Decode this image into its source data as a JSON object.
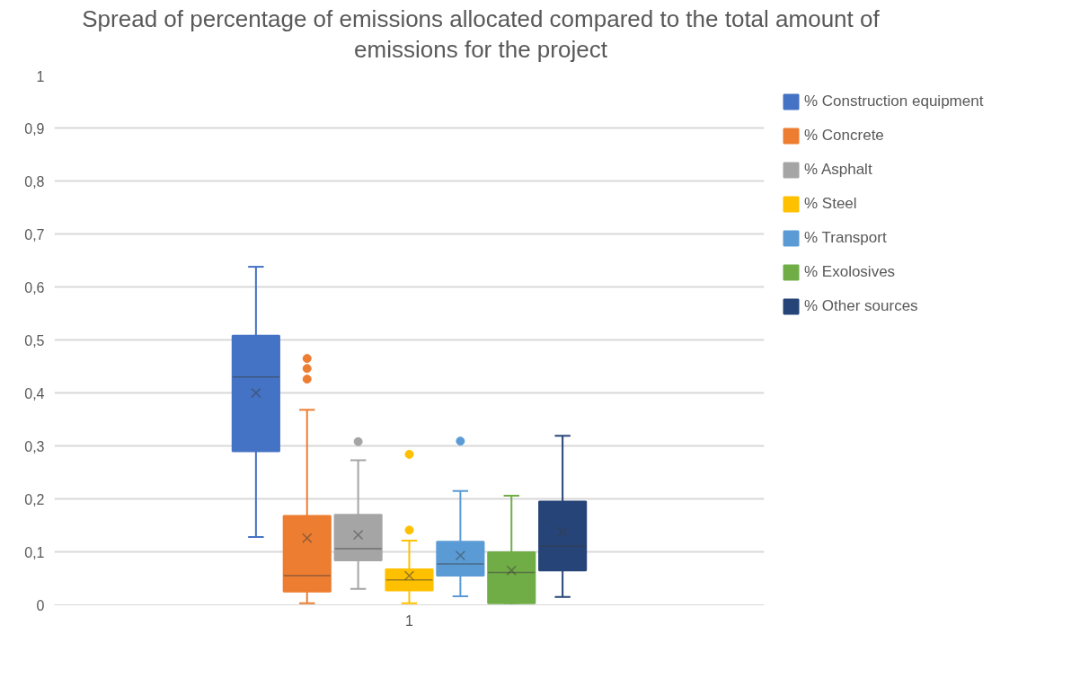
{
  "chart_data": {
    "type": "box",
    "title": "Spread of percentage of emissions allocated compared to the total amount of emissions for the project",
    "categories": [
      "1"
    ],
    "ylim": [
      0,
      1
    ],
    "yticks": [
      0,
      {
        "value": 0.1,
        "label": "0,1"
      },
      {
        "value": 0.2,
        "label": "0,2"
      },
      {
        "value": 0.3,
        "label": "0,3"
      },
      {
        "value": 0.4,
        "label": "0,4"
      },
      {
        "value": 0.5,
        "label": "0,5"
      },
      {
        "value": 0.6,
        "label": "0,6"
      },
      {
        "value": 0.7,
        "label": "0,7"
      },
      {
        "value": 0.8,
        "label": "0,8"
      },
      {
        "value": 0.9,
        "label": "0,9"
      },
      1
    ],
    "grid": "y",
    "legend": "right",
    "marker": "circle",
    "series": [
      {
        "name": "% Construction equipment",
        "color": "#4472c4",
        "boxes": [
          {
            "low": 0.128,
            "q1": 0.29,
            "median": 0.43,
            "q3": 0.508,
            "high": 0.638,
            "mean": 0.4
          }
        ]
      },
      {
        "name": "% Concrete",
        "color": "#ed7d31",
        "boxes": [
          {
            "low": 0.003,
            "q1": 0.025,
            "median": 0.055,
            "q3": 0.168,
            "high": 0.368,
            "mean": 0.126,
            "outliers": [
              0.465,
              0.446,
              0.426
            ]
          }
        ]
      },
      {
        "name": "% Asphalt",
        "color": "#a5a5a5",
        "boxes": [
          {
            "low": 0.03,
            "q1": 0.084,
            "median": 0.106,
            "q3": 0.17,
            "high": 0.273,
            "mean": 0.132,
            "outliers": [
              0.308
            ]
          }
        ]
      },
      {
        "name": "% Steel",
        "color": "#ffc000",
        "boxes": [
          {
            "low": 0.003,
            "q1": 0.027,
            "median": 0.047,
            "q3": 0.067,
            "high": 0.121,
            "mean": 0.055,
            "outliers": [
              0.284,
              0.141
            ]
          }
        ]
      },
      {
        "name": "% Transport",
        "color": "#5b9bd5",
        "boxes": [
          {
            "low": 0.016,
            "q1": 0.055,
            "median": 0.077,
            "q3": 0.119,
            "high": 0.215,
            "mean": 0.093,
            "outliers": [
              0.309
            ]
          }
        ]
      },
      {
        "name": "% Exolosives",
        "color": "#70ad47",
        "boxes": [
          {
            "low": 0.0,
            "q1": 0.003,
            "median": 0.061,
            "q3": 0.099,
            "high": 0.206,
            "mean": 0.065
          }
        ]
      },
      {
        "name": "% Other sources",
        "color": "#264478",
        "boxes": [
          {
            "low": 0.015,
            "q1": 0.065,
            "median": 0.111,
            "q3": 0.195,
            "high": 0.319,
            "mean": 0.138
          }
        ]
      }
    ]
  }
}
